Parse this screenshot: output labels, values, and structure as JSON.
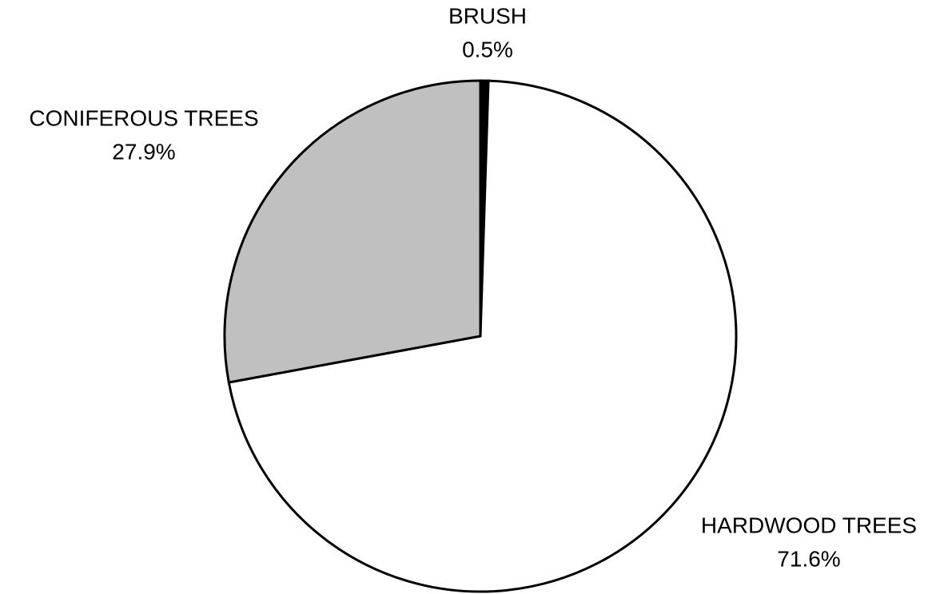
{
  "chart_data": {
    "type": "pie",
    "categories": [
      "BRUSH",
      "HARDWOOD TREES",
      "CONIFEROUS TREES"
    ],
    "values": [
      0.5,
      71.6,
      27.9
    ],
    "value_labels": [
      "0.5%",
      "71.6%",
      "27.9%"
    ],
    "colors": [
      "#000000",
      "#ffffff",
      "#c0c0c0"
    ]
  }
}
